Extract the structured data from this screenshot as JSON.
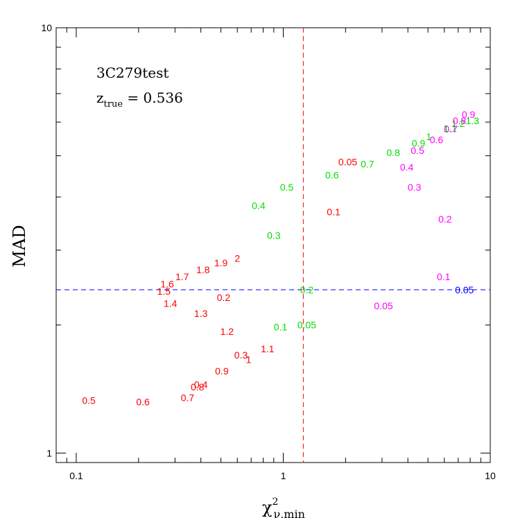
{
  "chart_data": {
    "type": "scatter",
    "title": "",
    "xlabel": "χ",
    "xlabel_sup": "2",
    "xlabel_sub": "ν,min",
    "ylabel": "MAD",
    "xscale": "log",
    "yscale": "log",
    "xlim": [
      0.08,
      10
    ],
    "ylim": [
      0.95,
      10
    ],
    "x_ticks": [
      {
        "value": 0.1,
        "label": "0.1"
      },
      {
        "value": 1,
        "label": "1"
      },
      {
        "value": 10,
        "label": "10"
      }
    ],
    "y_ticks": [
      {
        "value": 1,
        "label": "1"
      },
      {
        "value": 10,
        "label": "10"
      }
    ],
    "annotation": {
      "line1": "3C279test",
      "line2_main": "z",
      "line2_sub": "true",
      "line2_value": " =  0.536"
    },
    "reference_lines": {
      "vertical_x": 1.25,
      "vertical_color": "#ff0000",
      "horizontal_y": 2.42,
      "horizontal_color": "#0000ff"
    },
    "series": [
      {
        "color": "#ff0000",
        "points": [
          {
            "x": 0.115,
            "y": 1.33,
            "label": "0.5"
          },
          {
            "x": 0.21,
            "y": 1.32,
            "label": "0.6"
          },
          {
            "x": 0.345,
            "y": 1.35,
            "label": "0.7"
          },
          {
            "x": 0.385,
            "y": 1.43,
            "label": "0.8"
          },
          {
            "x": 0.4,
            "y": 1.45,
            "label": "0.4"
          },
          {
            "x": 0.505,
            "y": 1.56,
            "label": "0.9"
          },
          {
            "x": 0.625,
            "y": 1.7,
            "label": "0.3"
          },
          {
            "x": 0.68,
            "y": 1.66,
            "label": "1"
          },
          {
            "x": 0.84,
            "y": 1.76,
            "label": "1.1"
          },
          {
            "x": 0.535,
            "y": 1.93,
            "label": "1.2"
          },
          {
            "x": 0.4,
            "y": 2.13,
            "label": "1.3"
          },
          {
            "x": 0.285,
            "y": 2.25,
            "label": "1.4"
          },
          {
            "x": 0.265,
            "y": 2.4,
            "label": "1.5"
          },
          {
            "x": 0.275,
            "y": 2.5,
            "label": "1.6"
          },
          {
            "x": 0.325,
            "y": 2.6,
            "label": "1.7"
          },
          {
            "x": 0.41,
            "y": 2.7,
            "label": "1.8"
          },
          {
            "x": 0.5,
            "y": 2.8,
            "label": "1.9"
          },
          {
            "x": 0.6,
            "y": 2.87,
            "label": "2"
          },
          {
            "x": 0.515,
            "y": 2.32,
            "label": "0.2"
          },
          {
            "x": 1.75,
            "y": 3.69,
            "label": "0.1"
          },
          {
            "x": 2.05,
            "y": 4.84,
            "label": "0.05"
          }
        ]
      },
      {
        "color": "#00dd00",
        "points": [
          {
            "x": 0.97,
            "y": 1.98,
            "label": "0.1"
          },
          {
            "x": 1.3,
            "y": 2,
            "label": "0.05"
          },
          {
            "x": 1.3,
            "y": 2.42,
            "label": "0.2"
          },
          {
            "x": 0.9,
            "y": 3.25,
            "label": "0.3"
          },
          {
            "x": 0.76,
            "y": 3.82,
            "label": "0.4"
          },
          {
            "x": 1.04,
            "y": 4.22,
            "label": "0.5"
          },
          {
            "x": 1.72,
            "y": 4.5,
            "label": "0.6"
          },
          {
            "x": 2.55,
            "y": 4.78,
            "label": "0.7"
          },
          {
            "x": 3.4,
            "y": 5.09,
            "label": "0.8"
          },
          {
            "x": 4.5,
            "y": 5.35,
            "label": "0.9"
          },
          {
            "x": 5.05,
            "y": 5.55,
            "label": "1"
          },
          {
            "x": 6.4,
            "y": 5.8,
            "label": "1.1"
          },
          {
            "x": 7,
            "y": 5.96,
            "label": "1.2"
          },
          {
            "x": 8.2,
            "y": 6.05,
            "label": "1.3"
          }
        ]
      },
      {
        "color": "#ff00ff",
        "points": [
          {
            "x": 3.05,
            "y": 2.22,
            "label": "0.05"
          },
          {
            "x": 5.95,
            "y": 2.6,
            "label": "0.1"
          },
          {
            "x": 6.05,
            "y": 3.55,
            "label": "0.2"
          },
          {
            "x": 4.3,
            "y": 4.22,
            "label": "0.3"
          },
          {
            "x": 3.95,
            "y": 4.7,
            "label": "0.4"
          },
          {
            "x": 4.45,
            "y": 5.15,
            "label": "0.5"
          },
          {
            "x": 5.5,
            "y": 5.45,
            "label": "0.6"
          },
          {
            "x": 6.45,
            "y": 5.78,
            "label": "0.7"
          },
          {
            "x": 7.1,
            "y": 6.05,
            "label": "0.8"
          },
          {
            "x": 7.85,
            "y": 6.25,
            "label": "0.9"
          }
        ]
      },
      {
        "color": "#0000ff",
        "points": [
          {
            "x": 7.5,
            "y": 2.42,
            "label": "0.05"
          }
        ]
      }
    ]
  }
}
